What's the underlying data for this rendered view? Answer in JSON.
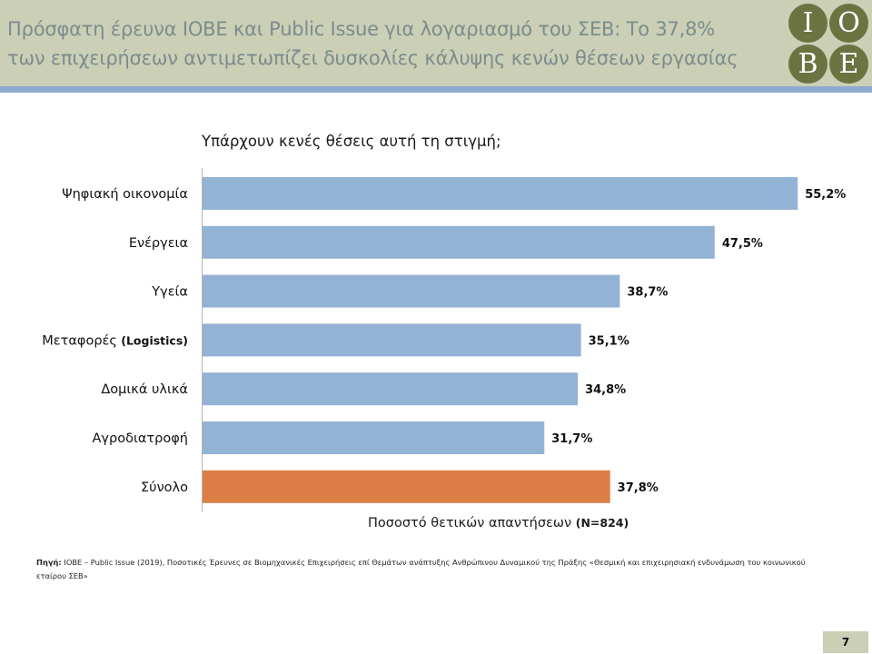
{
  "header": {
    "title_line1": "Πρόσφατη έρευνα ΙΟΒΕ και Public Issue για λογαριασμό του ΣΕΒ: Το 37,8%",
    "title_line2": "των επιχειρήσεων αντιμετωπίζει δυσκολίες κάλυψης κενών θέσεων εργασίας",
    "logo_letters": [
      "I",
      "O",
      "B",
      "E"
    ],
    "logo_color": "#6b7441"
  },
  "chart_data": {
    "type": "bar",
    "orientation": "horizontal",
    "title": "Υπάρχουν κενές θέσεις αυτή τη στιγμή;",
    "xlabel_main": "Ποσοστό θετικών απαντήσεων",
    "xlabel_paren": "(N=824)",
    "categories": [
      {
        "main": "Ψηφιακή οικονομία",
        "paren": ""
      },
      {
        "main": "Ενέργεια",
        "paren": ""
      },
      {
        "main": "Υγεία",
        "paren": ""
      },
      {
        "main": "Μεταφορές",
        "paren": "(Logistics)"
      },
      {
        "main": "Δομικά υλικά",
        "paren": ""
      },
      {
        "main": "Αγροδιατροφή",
        "paren": ""
      },
      {
        "main": "Σύνολο",
        "paren": ""
      }
    ],
    "values": [
      55.2,
      47.5,
      38.7,
      35.1,
      34.8,
      31.7,
      37.8
    ],
    "value_labels": [
      "55,2%",
      "47,5%",
      "38,7%",
      "35,1%",
      "34,8%",
      "31,7%",
      "37,8%"
    ],
    "xlim": [
      0,
      60
    ],
    "colors": {
      "default": "#93b3d4",
      "highlight": "#dc7e46"
    },
    "highlight_index": 6,
    "grid": false,
    "legend": "none"
  },
  "source": {
    "label": "Πηγή:",
    "text": "ΙΟΒΕ – Public Issue (2019), Ποσοτικές Έρευνες σε Βιομηχανικές Επιχειρήσεις επί Θεμάτων ανάπτυξης Ανθρώπινου Δυναμικού της Πράξης «Θεσμική και επιχειρησιακή ενδυνάμωση του κοινωνικού εταίρου ΣΕΒ»"
  },
  "footer": {
    "page_number": "7"
  }
}
